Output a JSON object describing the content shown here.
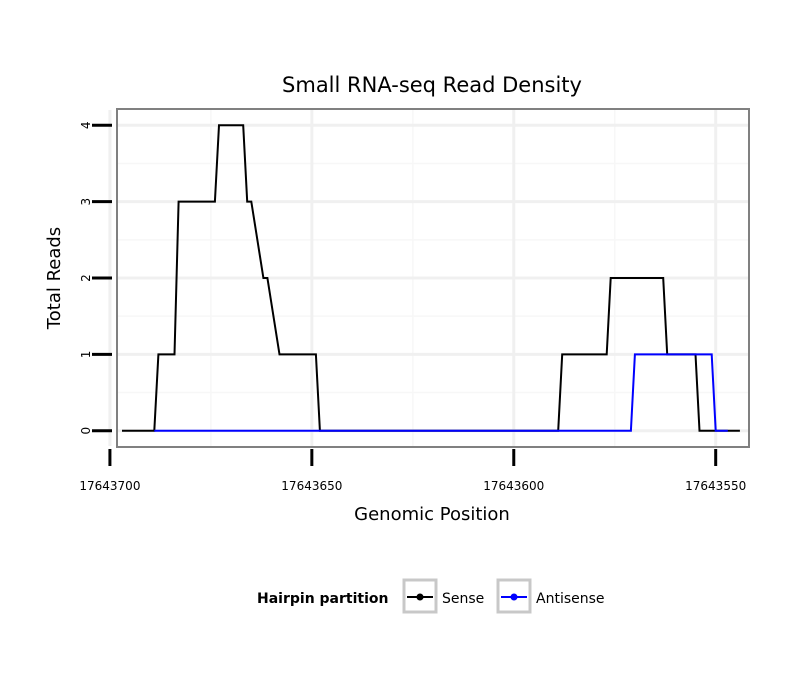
{
  "chart_data": {
    "type": "line",
    "title": "Small RNA-seq Read Density",
    "xlabel": "Genomic Position",
    "ylabel": "Total Reads",
    "x_reversed": true,
    "xlim": [
      17643698,
      17643542
    ],
    "ylim": [
      -0.2,
      4.2
    ],
    "x_ticks": [
      17643700,
      17643650,
      17643600,
      17643550
    ],
    "x_tick_labels": [
      "17643700",
      "17643650",
      "17643600",
      "17643550"
    ],
    "y_ticks": [
      0,
      1,
      2,
      3,
      4
    ],
    "y_tick_labels": [
      "0",
      "1",
      "2",
      "3",
      "4"
    ],
    "grid": true,
    "legend": {
      "title": "Hairpin partition",
      "position": "bottom",
      "entries": [
        "Sense",
        "Antisense"
      ]
    },
    "series": [
      {
        "name": "Sense",
        "color": "#000000",
        "x": [
          17643697,
          17643689,
          17643688,
          17643684,
          17643683,
          17643674,
          17643673,
          17643668,
          17643667,
          17643666,
          17643665,
          17643662,
          17643661,
          17643658,
          17643657,
          17643649,
          17643648,
          17643589,
          17643588,
          17643577,
          17643576,
          17643563,
          17643562,
          17643555,
          17643554,
          17643544
        ],
        "y": [
          0,
          0,
          1,
          1,
          3,
          3,
          4,
          4,
          4,
          3,
          3,
          2,
          2,
          1,
          1,
          1,
          0,
          0,
          1,
          1,
          2,
          2,
          1,
          1,
          0,
          0
        ]
      },
      {
        "name": "Antisense",
        "color": "#0000ff",
        "x": [
          17643689,
          17643571,
          17643570,
          17643561,
          17643560,
          17643551,
          17643550,
          17643547
        ],
        "y": [
          0,
          0,
          1,
          1,
          1,
          1,
          0,
          0
        ]
      }
    ]
  }
}
